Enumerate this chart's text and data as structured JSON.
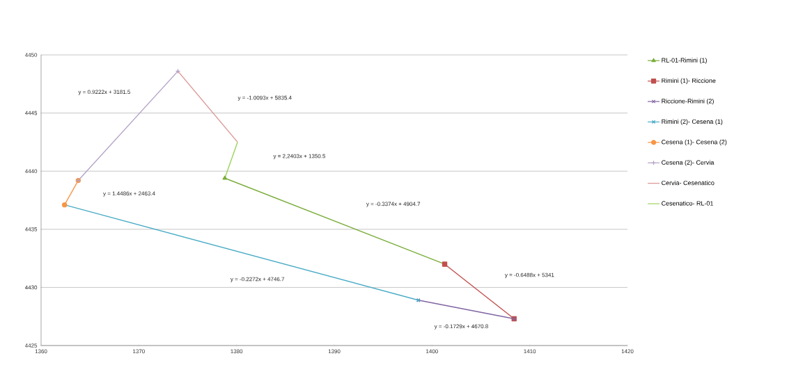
{
  "chart_data": {
    "type": "line",
    "xlim": [
      1360,
      1420
    ],
    "ylim": [
      4425,
      4450
    ],
    "xticks": [
      1360,
      1370,
      1380,
      1390,
      1400,
      1410,
      1420
    ],
    "yticks": [
      4425,
      4430,
      4435,
      4440,
      4445,
      4450
    ],
    "grid": "y",
    "legend": "right",
    "line_style": "solid",
    "series": [
      {
        "name": "RL-01-Rimini (1)",
        "color": "#7aad3b",
        "marker": "triangle",
        "x": [
          1378.8,
          1401.3
        ],
        "values": [
          4439.4,
          4432.0
        ]
      },
      {
        "name": "Rimini (1)- Riccione",
        "color": "#c0504d",
        "marker": "square",
        "x": [
          1401.3,
          1408.4
        ],
        "values": [
          4432.0,
          4427.3
        ]
      },
      {
        "name": "Riccione-Rimini (2)",
        "color": "#8064a2",
        "marker": "cross",
        "x": [
          1408.4,
          1398.6
        ],
        "values": [
          4427.3,
          4428.9
        ]
      },
      {
        "name": "Rimini (2)- Cesena (1)",
        "color": "#4bacc6",
        "marker": "cross",
        "x": [
          1398.6,
          1362.4
        ],
        "values": [
          4428.9,
          4437.1
        ]
      },
      {
        "name": "Cesena (1)- Cesena (2)",
        "color": "#f79646",
        "marker": "circle",
        "x": [
          1362.4,
          1363.8
        ],
        "values": [
          4437.1,
          4439.2
        ]
      },
      {
        "name": "Cesena (2)- Cervia",
        "color": "#b3a2c7",
        "marker": "plus",
        "x": [
          1363.8,
          1374.0
        ],
        "values": [
          4439.2,
          4448.6
        ]
      },
      {
        "name": "Cervia- Cesenatico",
        "color": "#d99694",
        "marker": "none",
        "x": [
          1374.0,
          1380.1
        ],
        "values": [
          4448.6,
          4442.5
        ]
      },
      {
        "name": "Cesenatico- RL-01",
        "color": "#9bd35b",
        "marker": "none",
        "x": [
          1380.1,
          1378.8
        ],
        "values": [
          4442.5,
          4439.4
        ]
      }
    ],
    "annotations": [
      "y = -0.3374x + 4904.7",
      "y = -0.6488x + 5341",
      "y = -0.1729x + 4670.8",
      "y = -0.2272x + 4746.7",
      "y = 1.4486x + 2463.4",
      "y = 0.9222x + 3181.5",
      "y = -1.0093x + 5835.4",
      "y = 2,2403x + 1350.5"
    ]
  }
}
